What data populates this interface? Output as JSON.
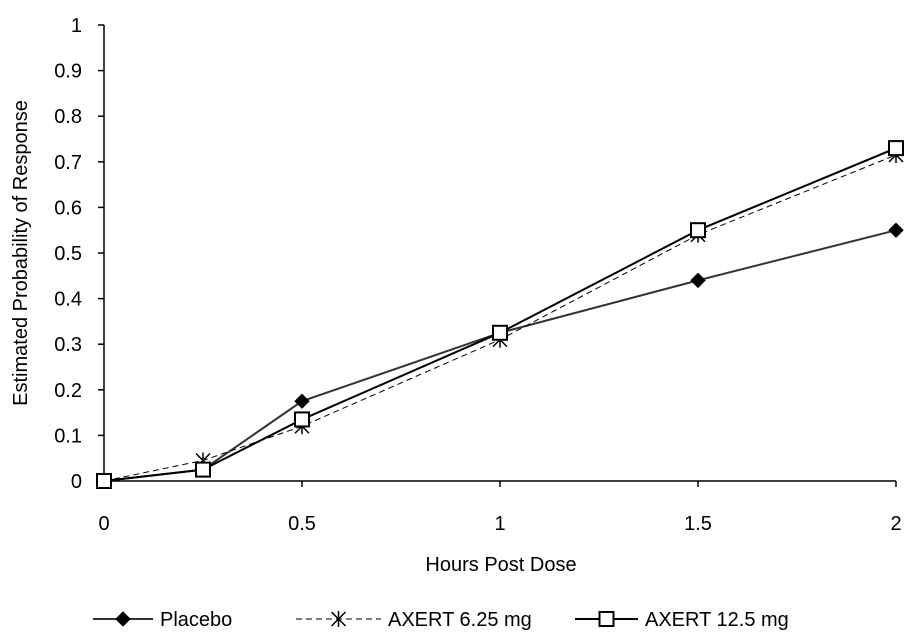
{
  "chart_data": {
    "type": "line",
    "title": "",
    "xlabel": "Hours Post Dose",
    "ylabel": "Estimated Probability of Response",
    "x": [
      0,
      0.25,
      0.5,
      1,
      1.5,
      2
    ],
    "xlim": [
      0,
      2
    ],
    "ylim": [
      0,
      1
    ],
    "xticks": [
      "0",
      "0.5",
      "1",
      "1.5",
      "2"
    ],
    "yticks": [
      "0",
      "0.1",
      "0.2",
      "0.3",
      "0.4",
      "0.5",
      "0.6",
      "0.7",
      "0.8",
      "0.9",
      "1"
    ],
    "grid": false,
    "legend_position": "bottom",
    "series": [
      {
        "name": "Placebo",
        "values": [
          0,
          0.025,
          0.175,
          0.325,
          0.44,
          0.55
        ],
        "color": "#333333",
        "line": "solid",
        "marker": "filled-diamond"
      },
      {
        "name": "AXERT 6.25 mg",
        "values": [
          0,
          0.045,
          0.12,
          0.31,
          0.54,
          0.715
        ],
        "color": "#000000",
        "line": "dashed",
        "marker": "star"
      },
      {
        "name": "AXERT 12.5 mg",
        "values": [
          0,
          0.025,
          0.135,
          0.325,
          0.55,
          0.73
        ],
        "color": "#000000",
        "line": "solid",
        "marker": "open-square"
      }
    ]
  }
}
